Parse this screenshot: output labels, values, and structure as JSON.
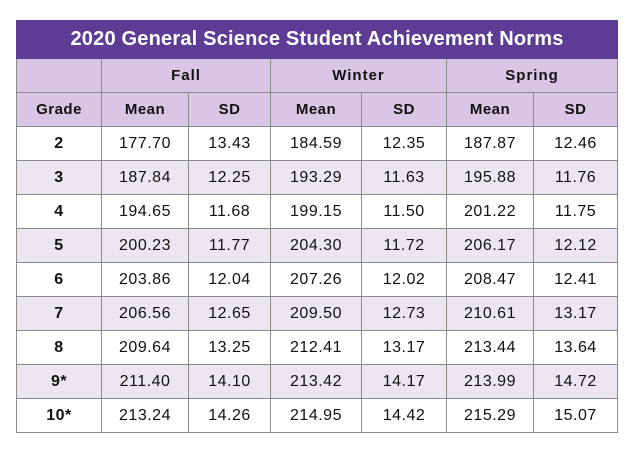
{
  "title": "2020 General Science Student Achievement Norms",
  "colors": {
    "title_bg": "#5c3c94",
    "header_bg": "#d8c6e4",
    "row_alt_bg": "#ece6f2",
    "row_bg": "#ffffff",
    "border": "#8a8a8a"
  },
  "seasons": [
    "Fall",
    "Winter",
    "Spring"
  ],
  "grade_header": "Grade",
  "stat_headers": [
    "Mean",
    "SD",
    "Mean",
    "SD",
    "Mean",
    "SD"
  ],
  "rows": [
    {
      "grade": "2",
      "cells": [
        "177.70",
        "13.43",
        "184.59",
        "12.35",
        "187.87",
        "12.46"
      ]
    },
    {
      "grade": "3",
      "cells": [
        "187.84",
        "12.25",
        "193.29",
        "11.63",
        "195.88",
        "11.76"
      ]
    },
    {
      "grade": "4",
      "cells": [
        "194.65",
        "11.68",
        "199.15",
        "11.50",
        "201.22",
        "11.75"
      ]
    },
    {
      "grade": "5",
      "cells": [
        "200.23",
        "11.77",
        "204.30",
        "11.72",
        "206.17",
        "12.12"
      ]
    },
    {
      "grade": "6",
      "cells": [
        "203.86",
        "12.04",
        "207.26",
        "12.02",
        "208.47",
        "12.41"
      ]
    },
    {
      "grade": "7",
      "cells": [
        "206.56",
        "12.65",
        "209.50",
        "12.73",
        "210.61",
        "13.17"
      ]
    },
    {
      "grade": "8",
      "cells": [
        "209.64",
        "13.25",
        "212.41",
        "13.17",
        "213.44",
        "13.64"
      ]
    },
    {
      "grade": "9*",
      "cells": [
        "211.40",
        "14.10",
        "213.42",
        "14.17",
        "213.99",
        "14.72"
      ]
    },
    {
      "grade": "10*",
      "cells": [
        "213.24",
        "14.26",
        "214.95",
        "14.42",
        "215.29",
        "15.07"
      ]
    }
  ]
}
